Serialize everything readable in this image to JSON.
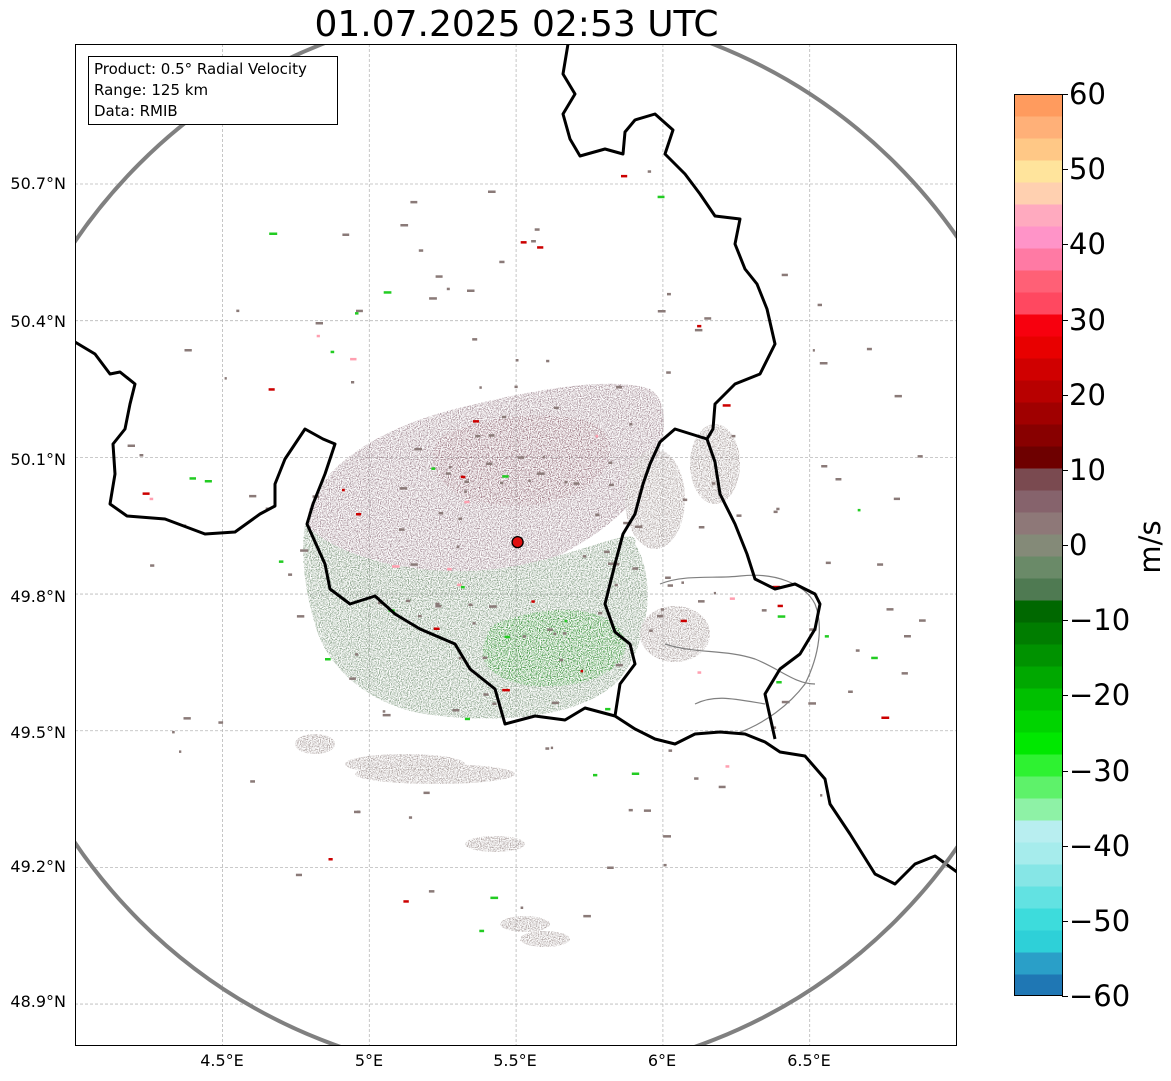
{
  "title": "01.07.2025 02:53 UTC",
  "info_box": {
    "product": "Product: 0.5° Radial Velocity",
    "range": "Range: 125 km",
    "data": "Data: RMIB"
  },
  "axes": {
    "lat_ticks": [
      "50.7°N",
      "50.4°N",
      "50.1°N",
      "49.8°N",
      "49.5°N",
      "49.2°N",
      "48.9°N"
    ],
    "lon_ticks": [
      "4.5°E",
      "5°E",
      "5.5°E",
      "6°E",
      "6.5°E"
    ],
    "lat_values": [
      50.7,
      50.4,
      50.1,
      49.8,
      49.5,
      49.2,
      48.9
    ],
    "lon_values": [
      4.5,
      5.0,
      5.5,
      6.0,
      6.5
    ],
    "lon_range": [
      4.0,
      7.0
    ],
    "lat_range": [
      48.8,
      51.0
    ],
    "grid": true
  },
  "radar": {
    "site_lon": 5.505,
    "site_lat": 49.914,
    "range_km": 125,
    "range_ring_color": "#808080",
    "site_marker_color": "#e01010"
  },
  "colorbar": {
    "label": "m/s",
    "min": -60,
    "max": 60,
    "ticks": [
      "60",
      "50",
      "40",
      "30",
      "20",
      "10",
      "0",
      "−10",
      "−20",
      "−30",
      "−40",
      "−50",
      "−60"
    ],
    "tick_values": [
      60,
      50,
      40,
      30,
      20,
      10,
      0,
      -10,
      -20,
      -30,
      -40,
      -50,
      -60
    ],
    "colors": [
      "#1f77b4",
      "#2a9fc8",
      "#2ed0d8",
      "#3ddcdc",
      "#62e2e2",
      "#86e6e6",
      "#a6ecec",
      "#b8eef0",
      "#8ef2a6",
      "#5ef26a",
      "#2ef231",
      "#00e800",
      "#00d400",
      "#00c000",
      "#00a800",
      "#009200",
      "#007d00",
      "#006800",
      "#4f7a52",
      "#6a8a68",
      "#848a78",
      "#8e7878",
      "#86636c",
      "#7a4a50",
      "#6e0000",
      "#880000",
      "#a00000",
      "#b80000",
      "#d00000",
      "#e80000",
      "#f7000e",
      "#ff4860",
      "#ff6076",
      "#ff7aa4",
      "#ff94c8",
      "#ffaabf",
      "#ffd0b0",
      "#ffe49c",
      "#ffc886",
      "#ffb078",
      "#ff9b5e"
    ]
  },
  "echo_colors": {
    "inbound_strong": "#007000",
    "inbound_weak": "#5e7e5e",
    "outbound_weak": "#856572",
    "neutral": "#8a7a78",
    "speckle_red": "#cc0000",
    "speckle_green": "#22cc22"
  },
  "boundary_color": "#000000",
  "admin_boundary_color": "#808080"
}
